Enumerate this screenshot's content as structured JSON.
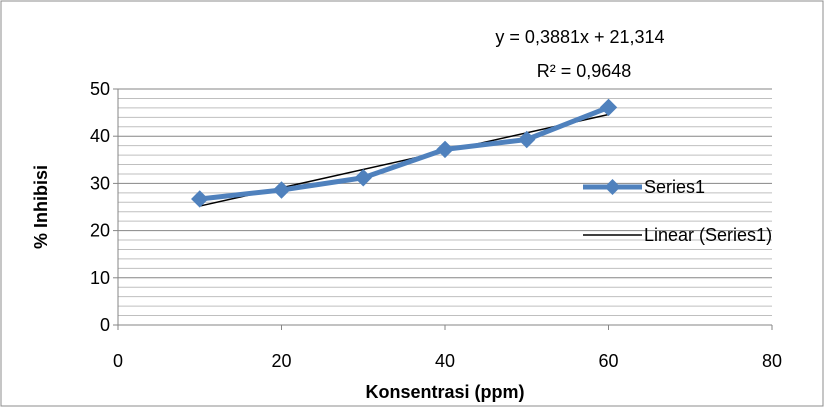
{
  "chart_data": {
    "type": "scatter",
    "title": "",
    "xlabel": "Konsentrasi (ppm)",
    "ylabel": "% Inhibisi",
    "xlim": [
      0,
      80
    ],
    "ylim": [
      0,
      50
    ],
    "x_ticks": [
      0,
      20,
      40,
      60,
      80
    ],
    "y_ticks": [
      0,
      10,
      20,
      30,
      40,
      50
    ],
    "grid": "horizontal major and minor",
    "legend_position": "right",
    "series": [
      {
        "name": "Series1",
        "color": "#4F81BD",
        "marker": "diamond",
        "x": [
          10,
          20,
          30,
          40,
          50,
          60
        ],
        "y": [
          26.7,
          28.6,
          31.2,
          37.2,
          39.3,
          46.1
        ]
      }
    ],
    "trendline": {
      "name": "Linear (Series1)",
      "color": "#000000",
      "slope": 0.3881,
      "intercept": 21.314,
      "x_range": [
        10,
        60
      ]
    },
    "annotations": {
      "equation": "y = 0,3881x + 21,314",
      "r_squared": "R² = 0,9648"
    }
  }
}
